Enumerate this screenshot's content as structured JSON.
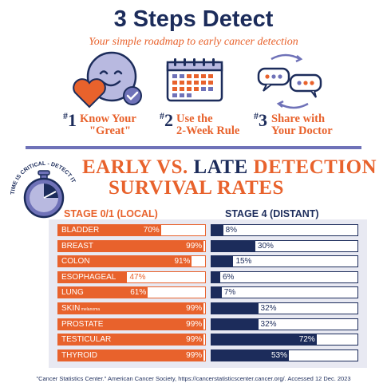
{
  "header": {
    "title": "3 Steps Detect",
    "subtitle": "Your simple roadmap to early cancer detection"
  },
  "steps": [
    {
      "hash": "#",
      "number": "1",
      "line1": "Know Your",
      "line2": "\"Great\"",
      "icon": "smiley-heart-check-icon"
    },
    {
      "hash": "#",
      "number": "2",
      "line1": "Use the",
      "line2": "2-Week Rule",
      "icon": "calendar-icon"
    },
    {
      "hash": "#",
      "number": "3",
      "line1": "Share with",
      "line2": "Your Doctor",
      "icon": "chat-bubbles-icon"
    }
  ],
  "section": {
    "arc_text": "TIME IS CRITICAL - DETECT IT EARLY",
    "heading_early": "EARLY VS.",
    "heading_late": "LATE",
    "heading_detection": "DETECTION",
    "heading_line2": "SURVIVAL RATES",
    "col_left": "STAGE 0/1 (LOCAL)",
    "col_right": "STAGE 4 (DISTANT)"
  },
  "chart_data": {
    "type": "bar",
    "categories": [
      "BLADDER",
      "BREAST",
      "COLON",
      "ESOPHAGEAL",
      "LUNG",
      "SKIN",
      "PROSTATE",
      "TESTICULAR",
      "THYROID"
    ],
    "category_notes": [
      "",
      "",
      "",
      "",
      "",
      "melanoma",
      "",
      "",
      ""
    ],
    "series": [
      {
        "name": "STAGE 0/1 (LOCAL)",
        "values": [
          70,
          99,
          91,
          47,
          61,
          99,
          99,
          99,
          99
        ],
        "labels": [
          "70%",
          "99%",
          "91%",
          "47%",
          "61%",
          "99%",
          "99%",
          "99%",
          "99%"
        ]
      },
      {
        "name": "STAGE 4 (DISTANT)",
        "values": [
          8,
          30,
          15,
          6,
          7,
          32,
          32,
          72,
          53
        ],
        "labels": [
          "8%",
          "30%",
          "15%",
          "6%",
          "7%",
          "32%",
          "32%",
          "72%",
          "53%"
        ]
      }
    ],
    "ylim": [
      0,
      100
    ]
  },
  "colors": {
    "orange": "#e8622c",
    "navy": "#1c2c5b",
    "purple": "#6f72b8"
  },
  "footnote": "\"Cancer Statistics Center.\" American Cancer Society, https://cancerstatisticscenter.cancer.org/. Accessed 12 Dec. 2023"
}
